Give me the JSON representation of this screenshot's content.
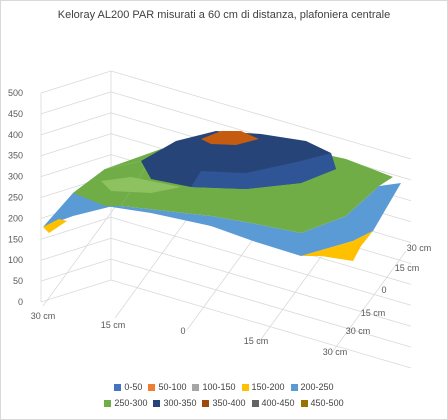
{
  "chart_data": {
    "type": "surface",
    "title": "Keloray AL200 PAR misurati a 60 cm di distanza, plafoniera centrale",
    "zlim": [
      0,
      500
    ],
    "z_ticks": [
      "0",
      "50",
      "100",
      "150",
      "200",
      "250",
      "300",
      "350",
      "400",
      "450",
      "500"
    ],
    "x_ticks": [
      "30 cm",
      "15 cm",
      "0",
      "15 cm",
      "30 cm"
    ],
    "y_ticks": [
      "30 cm",
      "15 cm",
      "0",
      "15 cm",
      "30 cm"
    ],
    "legend": [
      {
        "label": "0-50",
        "color": "#4472c4"
      },
      {
        "label": "50-100",
        "color": "#ed7d31"
      },
      {
        "label": "100-150",
        "color": "#a5a5a5"
      },
      {
        "label": "150-200",
        "color": "#ffc000"
      },
      {
        "label": "200-250",
        "color": "#5b9bd5"
      },
      {
        "label": "250-300",
        "color": "#70ad47"
      },
      {
        "label": "300-350",
        "color": "#264478"
      },
      {
        "label": "350-400",
        "color": "#9e480e"
      },
      {
        "label": "400-450",
        "color": "#636363"
      },
      {
        "label": "450-500",
        "color": "#997300"
      }
    ],
    "grid": true,
    "legend_position": "bottom"
  }
}
